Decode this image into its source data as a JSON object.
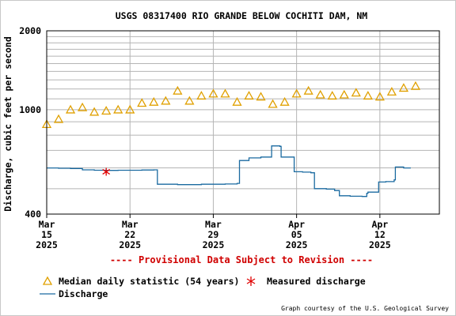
{
  "chart_data": {
    "type": "line",
    "title": "USGS 08317400 RIO GRANDE BELOW COCHITI DAM, NM",
    "ylabel": "Discharge, cubic feet per second",
    "y_scale": "log",
    "ylim": [
      400,
      2000
    ],
    "y_ticks": [
      {
        "value": 400,
        "label": "400"
      },
      {
        "value": 1000,
        "label": "1000"
      },
      {
        "value": 2000,
        "label": "2000"
      }
    ],
    "x_range": [
      "2025-03-15",
      "2025-04-17"
    ],
    "x_ticks": [
      {
        "date": "2025-03-15",
        "month": "Mar",
        "day": "15",
        "year": "2025"
      },
      {
        "date": "2025-03-22",
        "month": "Mar",
        "day": "22",
        "year": "2025"
      },
      {
        "date": "2025-03-29",
        "month": "Mar",
        "day": "29",
        "year": "2025"
      },
      {
        "date": "2025-04-05",
        "month": "Apr",
        "day": "05",
        "year": "2025"
      },
      {
        "date": "2025-04-12",
        "month": "Apr",
        "day": "12",
        "year": "2025"
      }
    ],
    "grid": true,
    "provisional_note": "---- Provisional Data Subject to Revision ----",
    "credit": "Graph courtesy of the U.S. Geological Survey",
    "legend": [
      {
        "marker": "triangle",
        "label": "Median daily statistic (54 years)"
      },
      {
        "marker": "asterisk",
        "label": "Measured discharge"
      },
      {
        "marker": "line",
        "label": "Discharge"
      }
    ],
    "series": [
      {
        "name": "Discharge",
        "color": "#1a6aa0",
        "style": "step",
        "points": [
          [
            "2025-03-15",
            600
          ],
          [
            "2025-03-16",
            598
          ],
          [
            "2025-03-17",
            597
          ],
          [
            "2025-03-18",
            590
          ],
          [
            "2025-03-19",
            588
          ],
          [
            "2025-03-20",
            587
          ],
          [
            "2025-03-21",
            588
          ],
          [
            "2025-03-22",
            588
          ],
          [
            "2025-03-23",
            589
          ],
          [
            "2025-03-24",
            590
          ],
          [
            "2025-03-24.3",
            520
          ],
          [
            "2025-03-26",
            518
          ],
          [
            "2025-03-28",
            520
          ],
          [
            "2025-03-30",
            521
          ],
          [
            "2025-03-31",
            524
          ],
          [
            "2025-03-31.2",
            640
          ],
          [
            "2025-04-01",
            655
          ],
          [
            "2025-04-02",
            660
          ],
          [
            "2025-04-02.9",
            728
          ],
          [
            "2025-04-03.6",
            725
          ],
          [
            "2025-04-03.7",
            660
          ],
          [
            "2025-04-04.5",
            660
          ],
          [
            "2025-04-04.8",
            580
          ],
          [
            "2025-04-05.5",
            578
          ],
          [
            "2025-04-06.2",
            575
          ],
          [
            "2025-04-06.5",
            500
          ],
          [
            "2025-04-07.5",
            498
          ],
          [
            "2025-04-08.2",
            492
          ],
          [
            "2025-04-08.6",
            470
          ],
          [
            "2025-04-09.5",
            468
          ],
          [
            "2025-04-10.5",
            467
          ],
          [
            "2025-04-10.9",
            480
          ],
          [
            "2025-04-11",
            485
          ],
          [
            "2025-04-11.9",
            530
          ],
          [
            "2025-04-12.5",
            532
          ],
          [
            "2025-04-13.2",
            540
          ],
          [
            "2025-04-13.3",
            605
          ],
          [
            "2025-04-14",
            600
          ],
          [
            "2025-04-14.6",
            600
          ]
        ]
      },
      {
        "name": "Median daily statistic (54 years)",
        "color": "#e0a000",
        "marker": "triangle",
        "points": [
          [
            "2025-03-15",
            880
          ],
          [
            "2025-03-16",
            920
          ],
          [
            "2025-03-17",
            1000
          ],
          [
            "2025-03-18",
            1020
          ],
          [
            "2025-03-19",
            980
          ],
          [
            "2025-03-20",
            990
          ],
          [
            "2025-03-21",
            1000
          ],
          [
            "2025-03-22",
            1000
          ],
          [
            "2025-03-23",
            1060
          ],
          [
            "2025-03-24",
            1070
          ],
          [
            "2025-03-25",
            1080
          ],
          [
            "2025-03-26",
            1180
          ],
          [
            "2025-03-27",
            1080
          ],
          [
            "2025-03-28",
            1130
          ],
          [
            "2025-03-29",
            1150
          ],
          [
            "2025-03-30",
            1150
          ],
          [
            "2025-03-31",
            1070
          ],
          [
            "2025-04-01",
            1130
          ],
          [
            "2025-04-02",
            1120
          ],
          [
            "2025-04-03",
            1050
          ],
          [
            "2025-04-04",
            1070
          ],
          [
            "2025-04-05",
            1150
          ],
          [
            "2025-04-06",
            1180
          ],
          [
            "2025-04-07",
            1140
          ],
          [
            "2025-04-08",
            1130
          ],
          [
            "2025-04-09",
            1140
          ],
          [
            "2025-04-10",
            1160
          ],
          [
            "2025-04-11",
            1130
          ],
          [
            "2025-04-12",
            1120
          ],
          [
            "2025-04-13",
            1170
          ],
          [
            "2025-04-14",
            1210
          ],
          [
            "2025-04-15",
            1230
          ]
        ]
      },
      {
        "name": "Measured discharge",
        "color": "#e00000",
        "marker": "asterisk",
        "points": [
          [
            "2025-03-20",
            580
          ]
        ]
      }
    ]
  }
}
